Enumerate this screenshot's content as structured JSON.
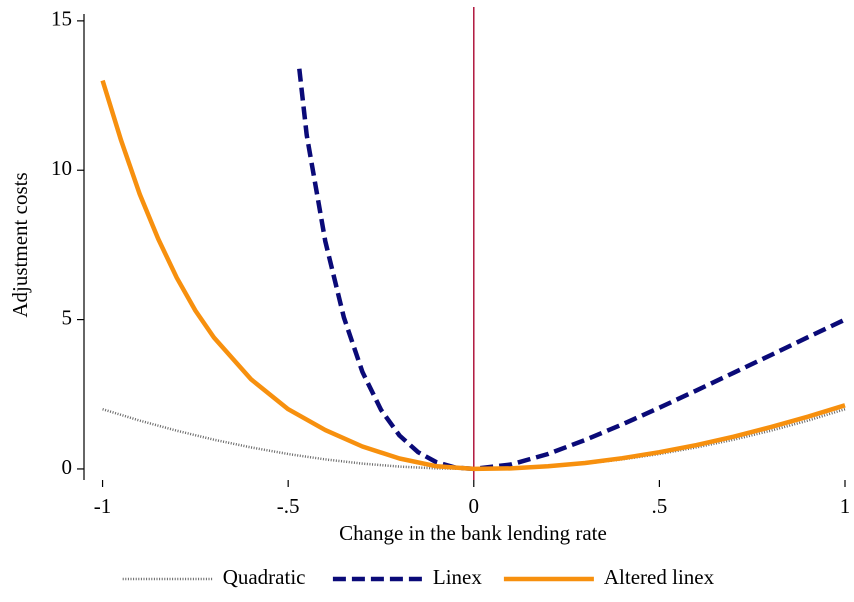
{
  "chart_data": {
    "type": "line",
    "xlabel": "Change in the bank lending rate",
    "ylabel": "Adjustment costs",
    "xlim": [
      -1.05,
      1
    ],
    "ylim": [
      -0.37,
      15.23
    ],
    "xticks": [
      -1,
      {
        "value": -0.5,
        "label": "-.5"
      },
      0,
      {
        "value": 0.5,
        "label": ".5"
      },
      1
    ],
    "yticks": [
      0,
      5,
      10,
      15
    ],
    "vline": {
      "x": 0,
      "color": "#b0173f"
    },
    "legend": "bottom",
    "series": [
      {
        "name": "Quadratic",
        "color": "#666666",
        "style": "dotted",
        "x": [
          -1,
          -0.9,
          -0.8,
          -0.7,
          -0.6,
          -0.5,
          -0.4,
          -0.3,
          -0.2,
          -0.1,
          0,
          0.1,
          0.2,
          0.3,
          0.4,
          0.5,
          0.6,
          0.7,
          0.8,
          0.9,
          1
        ],
        "values": [
          2,
          1.62,
          1.28,
          0.98,
          0.72,
          0.5,
          0.32,
          0.18,
          0.08,
          0.02,
          0,
          0.02,
          0.08,
          0.18,
          0.32,
          0.5,
          0.72,
          0.98,
          1.28,
          1.62,
          2
        ]
      },
      {
        "name": "Linex",
        "color": "#0a0a78",
        "style": "dashed",
        "x": [
          -0.47,
          -0.45,
          -0.4,
          -0.35,
          -0.3,
          -0.25,
          -0.2,
          -0.15,
          -0.1,
          -0.05,
          0,
          0.1,
          0.2,
          0.3,
          0.4,
          0.5,
          0.6,
          0.7,
          0.8,
          0.9,
          1
        ],
        "values": [
          13.4,
          11.18,
          7.62,
          5.07,
          3.25,
          1.98,
          1.12,
          0.56,
          0.22,
          0.05,
          0,
          0.15,
          0.5,
          0.97,
          1.49,
          2.05,
          2.63,
          3.22,
          3.81,
          4.41,
          5.0
        ]
      },
      {
        "name": "Altered linex",
        "color": "#f7900e",
        "style": "solid",
        "x": [
          -1,
          -0.95,
          -0.9,
          -0.85,
          -0.8,
          -0.75,
          -0.7,
          -0.6,
          -0.5,
          -0.4,
          -0.3,
          -0.2,
          -0.1,
          0,
          0.1,
          0.2,
          0.3,
          0.4,
          0.5,
          0.6,
          0.7,
          0.8,
          0.9,
          1
        ],
        "values": [
          13,
          11,
          9.2,
          7.7,
          6.4,
          5.3,
          4.4,
          3.0,
          2.0,
          1.3,
          0.75,
          0.35,
          0.09,
          0,
          0.02,
          0.09,
          0.2,
          0.36,
          0.56,
          0.8,
          1.08,
          1.4,
          1.75,
          2.13
        ]
      }
    ]
  }
}
